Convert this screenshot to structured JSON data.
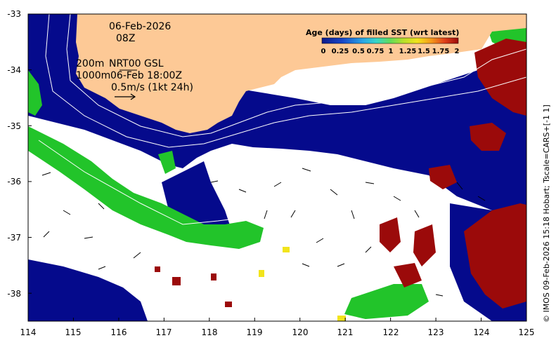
{
  "map": {
    "lon_ticks": [
      "114",
      "115",
      "116",
      "117",
      "118",
      "119",
      "120",
      "121",
      "122",
      "123",
      "124",
      "125"
    ],
    "lat_ticks": [
      "-33",
      "-34",
      "-35",
      "-36",
      "-37",
      "-38"
    ],
    "lon_range": [
      114,
      125
    ],
    "lat_range": [
      -38.5,
      -33
    ]
  },
  "annotations": {
    "date": "06-Feb-2026",
    "hour": "08Z",
    "contour_200": "200m",
    "contour_1000": "1000m",
    "product": "NRT00 GSL",
    "product_time": "06-Feb 18:00Z",
    "scale_vector": "0.5m/s (1kt 24h)"
  },
  "colorbar": {
    "title": "Age (days) of filled SST (wrt latest)",
    "labels": [
      "0",
      "0.25",
      "0.5",
      "0.75",
      "1",
      "1.25",
      "1.5",
      "1.75",
      "2"
    ],
    "colors": [
      "#0c1a8a",
      "#1746c8",
      "#2aa6e6",
      "#38d6c8",
      "#62dc5a",
      "#b8e02a",
      "#f2e41c",
      "#f59a1a",
      "#e0401a",
      "#9b0a0a"
    ]
  },
  "credit": "© IMOS 09-Feb-2026 15:18 Hobart; Tscale=CARS+[-1 1]",
  "colors": {
    "land": "#fdc996",
    "fresh": "#050a8c",
    "green": "#22c42a",
    "old": "#9b0a0a",
    "yellow": "#f2e41c",
    "nodata": "#ffffff"
  }
}
